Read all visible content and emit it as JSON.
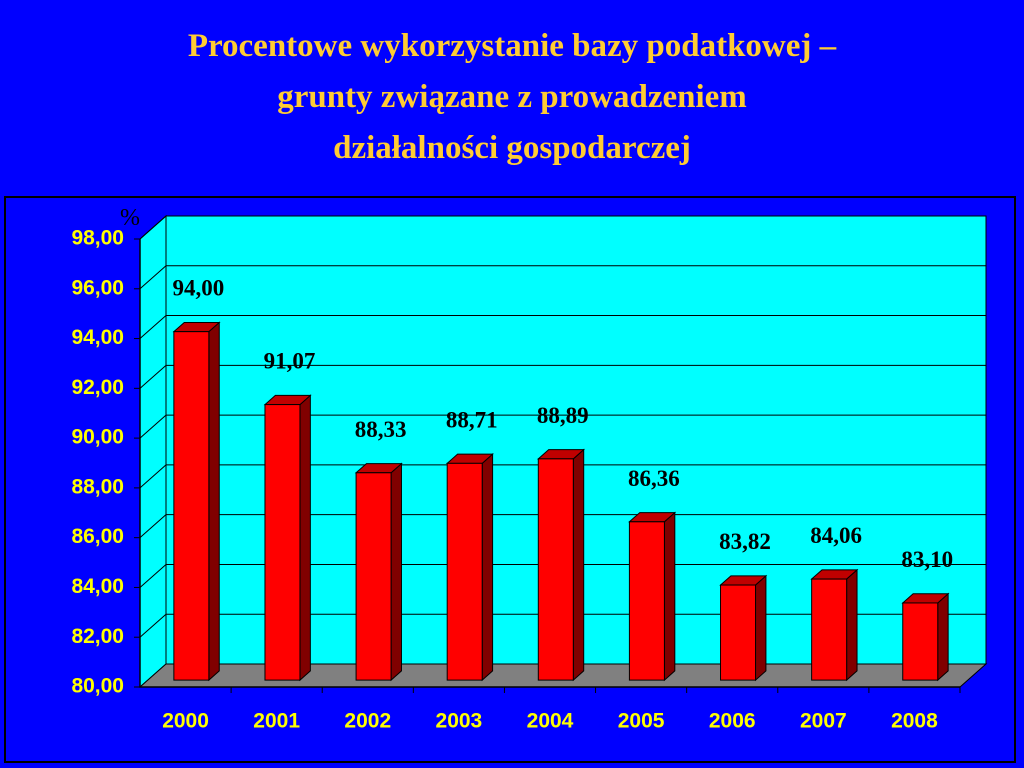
{
  "chart_data": {
    "type": "bar",
    "title": [
      "Procentowe wykorzystanie bazy podatkowej –",
      "grunty związane  z prowadzeniem",
      "działalności gospodarczej"
    ],
    "ylabel": "%",
    "categories": [
      "2000",
      "2001",
      "2002",
      "2003",
      "2004",
      "2005",
      "2006",
      "2007",
      "2008"
    ],
    "values": [
      94.0,
      91.07,
      88.33,
      88.71,
      88.89,
      86.36,
      83.82,
      84.06,
      83.1
    ],
    "value_labels": [
      "94,00",
      "91,07",
      "88,33",
      "88,71",
      "88,89",
      "86,36",
      "83,82",
      "84,06",
      "83,10"
    ],
    "color": "#ff0000",
    "ylim": [
      80,
      98
    ],
    "yticks": [
      {
        "value": 80,
        "label": "80,00"
      },
      {
        "value": 82,
        "label": "82,00"
      },
      {
        "value": 84,
        "label": "84,00"
      },
      {
        "value": 86,
        "label": "86,00"
      },
      {
        "value": 88,
        "label": "88,00"
      },
      {
        "value": 90,
        "label": "90,00"
      },
      {
        "value": 92,
        "label": "92,00"
      },
      {
        "value": 94,
        "label": "94,00"
      },
      {
        "value": 96,
        "label": "96,00"
      },
      {
        "value": 98,
        "label": "98,00"
      }
    ],
    "grid": true
  }
}
